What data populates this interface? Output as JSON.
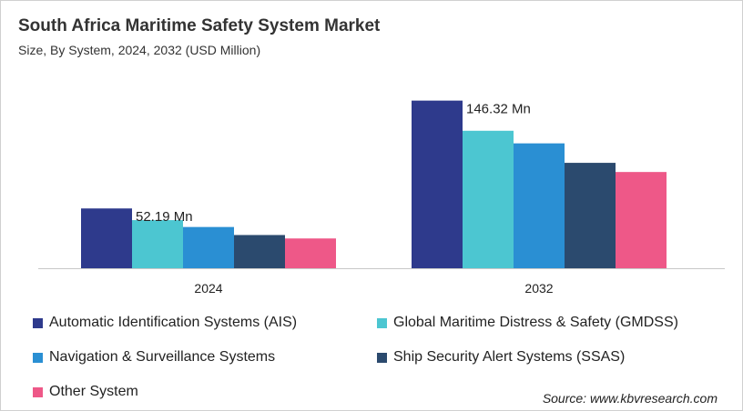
{
  "header": {
    "title": "South Africa Maritime Safety System Market",
    "subtitle": "Size, By System, 2024, 2032 (USD Million)"
  },
  "source": "Source: www.kbvresearch.com",
  "chart_data": {
    "type": "bar",
    "title": "South Africa Maritime Safety System Market",
    "subtitle": "Size, By System, 2024, 2032 (USD Million)",
    "categories": [
      "2024",
      "2032"
    ],
    "series": [
      {
        "name": "Automatic Identification Systems (AIS)",
        "color": "#2e3a8c",
        "values": [
          52.19,
          146.32
        ]
      },
      {
        "name": "Global Maritime Distress & Safety (GMDSS)",
        "color": "#4cc6d1",
        "values": [
          42.0,
          120.0
        ]
      },
      {
        "name": "Navigation & Surveillance Systems",
        "color": "#2a8fd3",
        "values": [
          36.0,
          109.0
        ]
      },
      {
        "name": "Ship Security Alert Systems (SSAS)",
        "color": "#2b4a6e",
        "values": [
          29.0,
          92.0
        ]
      },
      {
        "name": "Other System",
        "color": "#ee5888",
        "values": [
          26.0,
          84.0
        ]
      }
    ],
    "annotations": [
      {
        "category": "2024",
        "text": "52.19 Mn"
      },
      {
        "category": "2032",
        "text": "146.32 Mn"
      }
    ],
    "ylim": [
      0,
      160
    ],
    "grid": false,
    "legend_position": "bottom"
  }
}
